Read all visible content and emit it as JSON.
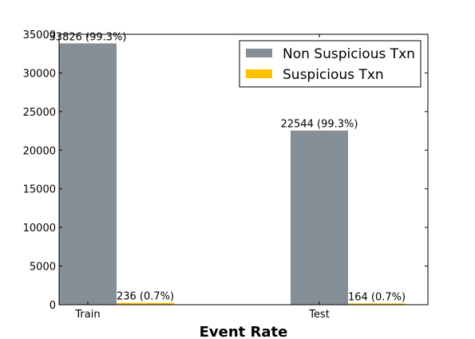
{
  "chart_data": {
    "type": "bar",
    "title": "",
    "xlabel": "Event Rate",
    "ylabel": "",
    "categories": [
      "Train",
      "Test"
    ],
    "series": [
      {
        "name": "Non Suspicious Txn",
        "color": "#878f96",
        "values": [
          33826,
          22544
        ],
        "labels": [
          "33826 (99.3%)",
          "22544 (99.3%)"
        ]
      },
      {
        "name": "Suspicious Txn",
        "color": "#ffc000",
        "values": [
          236,
          164
        ],
        "labels": [
          "236 (0.7%)",
          "164 (0.7%)"
        ]
      }
    ],
    "ylim": [
      0,
      35000
    ],
    "yticks": [
      "0",
      "5000",
      "10000",
      "15000",
      "20000",
      "25000",
      "30000",
      "35000"
    ],
    "grid": false,
    "legend_position": "top-right"
  }
}
